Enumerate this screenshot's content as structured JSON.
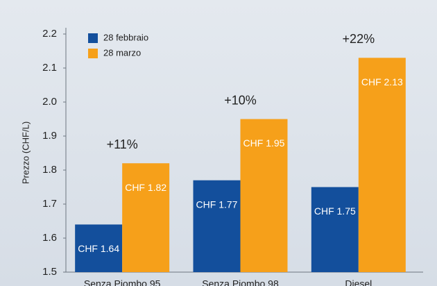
{
  "chart_data": {
    "type": "bar",
    "y_label": "Prezzo (CHF/L)",
    "categories": [
      "Senza Piombo 95",
      "Senza Piombo 98",
      "Diesel"
    ],
    "series": [
      {
        "name": "28 febbraio",
        "color": "#134f9c",
        "values": [
          1.64,
          1.77,
          1.75
        ],
        "value_labels": [
          "CHF 1.64",
          "CHF 1.77",
          "CHF 1.75"
        ]
      },
      {
        "name": "28 marzo",
        "color": "#f6a01a",
        "values": [
          1.82,
          1.95,
          2.13
        ],
        "value_labels": [
          "CHF 1.82",
          "CHF 1.95",
          "CHF 2.13"
        ]
      }
    ],
    "annotations": [
      "+11%",
      "+10%",
      "+22%"
    ],
    "ylim": [
      1.5,
      2.2
    ],
    "yticks": [
      1.5,
      1.6,
      1.7,
      1.8,
      1.9,
      {
        "value": 2,
        "label": "2.0"
      },
      2.1,
      2.2
    ],
    "legend": "upper left"
  }
}
